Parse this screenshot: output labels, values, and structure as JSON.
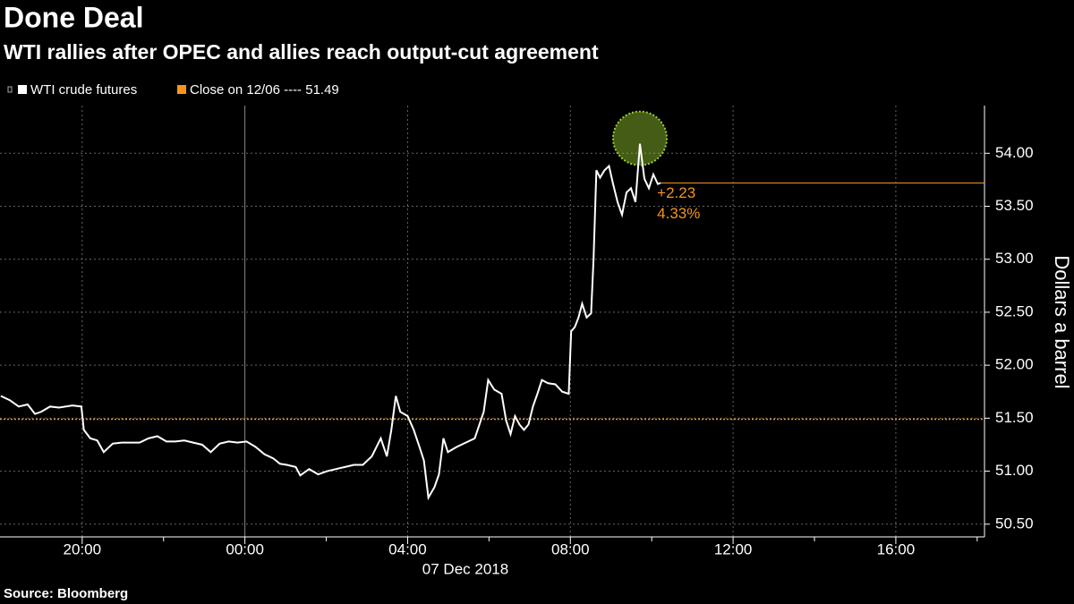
{
  "chart_data": {
    "type": "line",
    "title": "Done Deal",
    "subtitle": "WTI rallies after OPEC and allies reach output-cut agreement",
    "source": "Source: Bloomberg",
    "ylabel": "Dollars a barrel",
    "xlabel": "07 Dec 2018",
    "x": [
      -6.0,
      -5.78,
      -5.56,
      -5.34,
      -5.16,
      -5.01,
      -4.79,
      -4.57,
      -4.24,
      -4.02,
      -3.96,
      -3.8,
      -3.63,
      -3.47,
      -3.25,
      -3.03,
      -2.81,
      -2.59,
      -2.37,
      -2.15,
      -1.93,
      -1.71,
      -1.49,
      -1.27,
      -1.05,
      -0.84,
      -0.62,
      -0.4,
      -0.18,
      0.04,
      0.26,
      0.48,
      0.7,
      0.86,
      1.03,
      1.25,
      1.36,
      1.58,
      1.8,
      2.02,
      2.24,
      2.46,
      2.68,
      2.9,
      3.12,
      3.34,
      3.49,
      3.6,
      3.71,
      3.82,
      4.0,
      4.15,
      4.29,
      4.4,
      4.51,
      4.66,
      4.77,
      4.88,
      4.99,
      5.21,
      5.43,
      5.65,
      5.87,
      5.98,
      6.13,
      6.31,
      6.42,
      6.53,
      6.64,
      6.75,
      6.86,
      6.97,
      7.08,
      7.19,
      7.3,
      7.45,
      7.63,
      7.8,
      7.96,
      8.02,
      8.11,
      8.2,
      8.29,
      8.4,
      8.51,
      8.57,
      8.64,
      8.73,
      8.84,
      8.95,
      9.05,
      9.16,
      9.27,
      9.38,
      9.49,
      9.6,
      9.71,
      9.82,
      9.93,
      10.04,
      10.15,
      10.22
    ],
    "series": [
      {
        "name": "WTI crude futures",
        "color": "#ffffff",
        "values": [
          51.71,
          51.67,
          51.61,
          51.63,
          51.54,
          51.56,
          51.61,
          51.6,
          51.62,
          51.61,
          51.39,
          51.31,
          51.29,
          51.18,
          51.26,
          51.27,
          51.27,
          51.27,
          51.31,
          51.33,
          51.28,
          51.28,
          51.29,
          51.27,
          51.25,
          51.18,
          51.26,
          51.28,
          51.27,
          51.28,
          51.23,
          51.16,
          51.12,
          51.07,
          51.06,
          51.04,
          50.96,
          51.02,
          50.97,
          51.0,
          51.02,
          51.04,
          51.06,
          51.06,
          51.14,
          51.31,
          51.14,
          51.39,
          51.71,
          51.56,
          51.52,
          51.39,
          51.23,
          51.1,
          50.75,
          50.85,
          50.97,
          51.31,
          51.18,
          51.23,
          51.27,
          51.31,
          51.56,
          51.86,
          51.77,
          51.73,
          51.48,
          51.35,
          51.52,
          51.44,
          51.39,
          51.44,
          51.61,
          51.73,
          51.86,
          51.83,
          51.82,
          51.75,
          51.73,
          52.32,
          52.36,
          52.45,
          52.58,
          52.45,
          52.49,
          53.0,
          53.84,
          53.77,
          53.84,
          53.88,
          53.71,
          53.54,
          53.42,
          53.63,
          53.67,
          53.54,
          54.09,
          53.76,
          53.67,
          53.8,
          53.71,
          53.72
        ]
      }
    ],
    "reference_line": {
      "value": 51.49,
      "label": "Close on 12/06 ---- 51.49",
      "color": "#f7941d"
    },
    "change_labels": [
      "+2.23",
      "4.33%"
    ],
    "highlight_color": "#9acd32",
    "xlim": [
      -6.02,
      18.18
    ],
    "xticks": [
      {
        "value": -4,
        "label": "20:00"
      },
      {
        "value": 0,
        "label": "00:00"
      },
      {
        "value": 4,
        "label": "04:00"
      },
      {
        "value": 8,
        "label": "08:00"
      },
      {
        "value": 12,
        "label": "12:00"
      },
      {
        "value": 16,
        "label": "16:00"
      }
    ],
    "x_minor_ticks": [
      -2,
      2,
      6,
      10,
      14,
      18
    ],
    "ylim": [
      50.38,
      54.45
    ],
    "yticks": [
      {
        "value": 50.5,
        "label": "50.50"
      },
      {
        "value": 51,
        "label": "51.00"
      },
      {
        "value": 51.5,
        "label": "51.50"
      },
      {
        "value": 52,
        "label": "52.00"
      },
      {
        "value": 52.5,
        "label": "52.50"
      },
      {
        "value": 53,
        "label": "53.00"
      },
      {
        "value": 53.5,
        "label": "53.50"
      },
      {
        "value": 54,
        "label": "54.00"
      }
    ],
    "grid": true
  }
}
